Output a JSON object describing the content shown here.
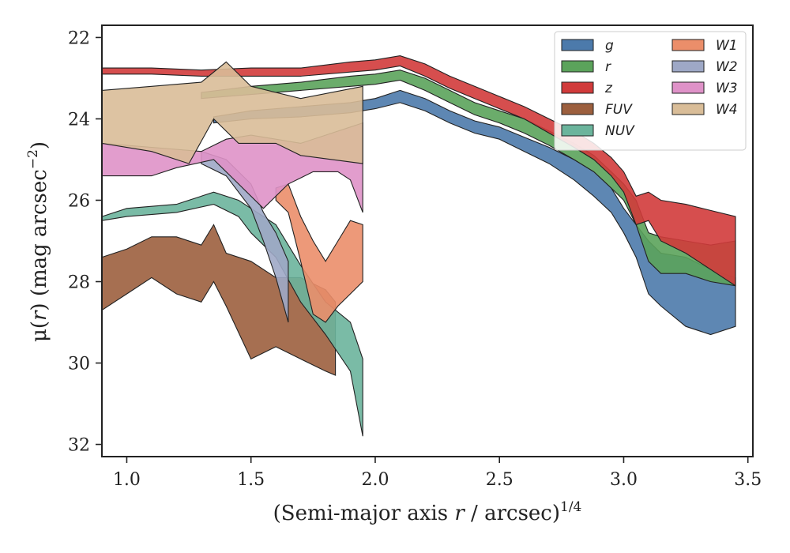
{
  "chart_data": {
    "type": "area",
    "xlabel": {
      "prefix": "(Semi-major axis ",
      "var": "r",
      "suffix": " / arcsec)",
      "sup": "1/4"
    },
    "ylabel": {
      "prefix": "μ(",
      "var": "r",
      "suffix": ") (mag arcsec",
      "sup": "−2",
      "close": ")"
    },
    "xlim": [
      0.9,
      3.52
    ],
    "ylim": [
      32.3,
      21.7
    ],
    "y_inverted": true,
    "xticks": [
      1.0,
      1.5,
      2.0,
      2.5,
      3.0,
      3.5
    ],
    "xtick_labels": [
      "1.0",
      "1.5",
      "2.0",
      "2.5",
      "3.0",
      "3.5"
    ],
    "yticks": [
      22,
      24,
      26,
      28,
      30,
      32
    ],
    "ytick_labels": [
      "22",
      "24",
      "26",
      "28",
      "30",
      "32"
    ],
    "legend": {
      "placement": "top-right",
      "columns": 2
    },
    "series": [
      {
        "name": "g",
        "color": "#4c7aab",
        "upper": [
          [
            1.35,
            23.95
          ],
          [
            1.5,
            23.8
          ],
          [
            1.7,
            23.7
          ],
          [
            1.9,
            23.6
          ],
          [
            2.0,
            23.5
          ],
          [
            2.1,
            23.3
          ],
          [
            2.2,
            23.5
          ],
          [
            2.3,
            23.8
          ],
          [
            2.4,
            24.05
          ],
          [
            2.5,
            24.2
          ],
          [
            2.6,
            24.45
          ],
          [
            2.7,
            24.7
          ],
          [
            2.8,
            25.0
          ],
          [
            2.88,
            25.3
          ],
          [
            2.95,
            25.7
          ],
          [
            3.0,
            26.2
          ],
          [
            3.05,
            26.6
          ],
          [
            3.1,
            27.0
          ],
          [
            3.15,
            27.3
          ],
          [
            3.25,
            27.4
          ],
          [
            3.35,
            27.7
          ],
          [
            3.45,
            27.9
          ]
        ],
        "lower": [
          [
            1.35,
            24.1
          ],
          [
            1.5,
            24.0
          ],
          [
            1.7,
            23.95
          ],
          [
            1.9,
            23.85
          ],
          [
            2.0,
            23.75
          ],
          [
            2.1,
            23.6
          ],
          [
            2.2,
            23.8
          ],
          [
            2.3,
            24.1
          ],
          [
            2.4,
            24.35
          ],
          [
            2.5,
            24.5
          ],
          [
            2.6,
            24.8
          ],
          [
            2.7,
            25.1
          ],
          [
            2.8,
            25.5
          ],
          [
            2.88,
            25.9
          ],
          [
            2.95,
            26.3
          ],
          [
            3.0,
            26.8
          ],
          [
            3.05,
            27.4
          ],
          [
            3.1,
            28.3
          ],
          [
            3.15,
            28.6
          ],
          [
            3.25,
            29.1
          ],
          [
            3.35,
            29.3
          ],
          [
            3.45,
            29.1
          ]
        ]
      },
      {
        "name": "r",
        "color": "#5ba35b",
        "upper": [
          [
            1.3,
            23.35
          ],
          [
            1.5,
            23.2
          ],
          [
            1.7,
            23.1
          ],
          [
            1.9,
            22.95
          ],
          [
            2.0,
            22.9
          ],
          [
            2.1,
            22.8
          ],
          [
            2.2,
            23.0
          ],
          [
            2.3,
            23.3
          ],
          [
            2.4,
            23.6
          ],
          [
            2.5,
            23.8
          ],
          [
            2.6,
            24.0
          ],
          [
            2.7,
            24.3
          ],
          [
            2.8,
            24.6
          ],
          [
            2.88,
            24.9
          ],
          [
            2.95,
            25.3
          ],
          [
            3.0,
            25.6
          ],
          [
            3.05,
            26.0
          ],
          [
            3.1,
            26.8
          ],
          [
            3.15,
            26.9
          ],
          [
            3.25,
            27.0
          ],
          [
            3.35,
            27.1
          ],
          [
            3.45,
            27.0
          ]
        ],
        "lower": [
          [
            1.3,
            23.5
          ],
          [
            1.5,
            23.4
          ],
          [
            1.7,
            23.3
          ],
          [
            1.9,
            23.2
          ],
          [
            2.0,
            23.15
          ],
          [
            2.1,
            23.05
          ],
          [
            2.2,
            23.3
          ],
          [
            2.3,
            23.6
          ],
          [
            2.4,
            23.9
          ],
          [
            2.5,
            24.1
          ],
          [
            2.6,
            24.35
          ],
          [
            2.7,
            24.65
          ],
          [
            2.8,
            25.0
          ],
          [
            2.88,
            25.3
          ],
          [
            2.95,
            25.7
          ],
          [
            3.0,
            26.0
          ],
          [
            3.05,
            26.6
          ],
          [
            3.1,
            27.5
          ],
          [
            3.15,
            27.8
          ],
          [
            3.25,
            27.8
          ],
          [
            3.35,
            28.0
          ],
          [
            3.45,
            28.1
          ]
        ]
      },
      {
        "name": "z",
        "color": "#d13b3b",
        "upper": [
          [
            0.9,
            22.75
          ],
          [
            1.1,
            22.75
          ],
          [
            1.3,
            22.8
          ],
          [
            1.5,
            22.75
          ],
          [
            1.7,
            22.75
          ],
          [
            1.9,
            22.6
          ],
          [
            2.0,
            22.55
          ],
          [
            2.1,
            22.45
          ],
          [
            2.2,
            22.65
          ],
          [
            2.3,
            22.95
          ],
          [
            2.4,
            23.2
          ],
          [
            2.5,
            23.45
          ],
          [
            2.6,
            23.7
          ],
          [
            2.7,
            24.0
          ],
          [
            2.8,
            24.3
          ],
          [
            2.88,
            24.6
          ],
          [
            2.95,
            24.95
          ],
          [
            3.0,
            25.3
          ],
          [
            3.05,
            25.9
          ],
          [
            3.1,
            25.8
          ],
          [
            3.15,
            26.0
          ],
          [
            3.25,
            26.1
          ],
          [
            3.35,
            26.25
          ],
          [
            3.45,
            26.4
          ]
        ],
        "lower": [
          [
            0.9,
            22.9
          ],
          [
            1.1,
            22.9
          ],
          [
            1.3,
            22.95
          ],
          [
            1.5,
            22.95
          ],
          [
            1.7,
            22.95
          ],
          [
            1.9,
            22.85
          ],
          [
            2.0,
            22.8
          ],
          [
            2.1,
            22.7
          ],
          [
            2.2,
            22.95
          ],
          [
            2.3,
            23.25
          ],
          [
            2.4,
            23.5
          ],
          [
            2.5,
            23.75
          ],
          [
            2.6,
            24.0
          ],
          [
            2.7,
            24.35
          ],
          [
            2.8,
            24.7
          ],
          [
            2.88,
            25.0
          ],
          [
            2.95,
            25.4
          ],
          [
            3.0,
            25.8
          ],
          [
            3.05,
            26.6
          ],
          [
            3.1,
            26.5
          ],
          [
            3.15,
            27.0
          ],
          [
            3.25,
            27.3
          ],
          [
            3.35,
            27.7
          ],
          [
            3.45,
            28.1
          ]
        ]
      },
      {
        "name": "FUV",
        "color": "#9c5f3e",
        "upper": [
          [
            0.9,
            27.4
          ],
          [
            1.0,
            27.2
          ],
          [
            1.1,
            26.9
          ],
          [
            1.2,
            26.9
          ],
          [
            1.3,
            27.1
          ],
          [
            1.35,
            26.6
          ],
          [
            1.4,
            27.3
          ],
          [
            1.5,
            27.5
          ],
          [
            1.6,
            27.9
          ],
          [
            1.7,
            27.9
          ],
          [
            1.8,
            28.2
          ],
          [
            1.84,
            28.5
          ]
        ],
        "lower": [
          [
            0.9,
            28.7
          ],
          [
            1.0,
            28.3
          ],
          [
            1.1,
            27.9
          ],
          [
            1.2,
            28.3
          ],
          [
            1.3,
            28.5
          ],
          [
            1.35,
            28.0
          ],
          [
            1.4,
            28.6
          ],
          [
            1.5,
            29.9
          ],
          [
            1.6,
            29.6
          ],
          [
            1.7,
            29.9
          ],
          [
            1.8,
            30.2
          ],
          [
            1.84,
            30.3
          ]
        ]
      },
      {
        "name": "NUV",
        "color": "#6bb49c",
        "upper": [
          [
            0.9,
            26.4
          ],
          [
            1.0,
            26.2
          ],
          [
            1.2,
            26.1
          ],
          [
            1.35,
            25.8
          ],
          [
            1.45,
            26.0
          ],
          [
            1.5,
            26.2
          ],
          [
            1.6,
            26.6
          ],
          [
            1.7,
            27.6
          ],
          [
            1.8,
            28.5
          ],
          [
            1.9,
            29.0
          ],
          [
            1.95,
            29.9
          ]
        ],
        "lower": [
          [
            0.9,
            26.5
          ],
          [
            1.0,
            26.4
          ],
          [
            1.2,
            26.3
          ],
          [
            1.35,
            26.1
          ],
          [
            1.45,
            26.4
          ],
          [
            1.5,
            26.8
          ],
          [
            1.6,
            27.4
          ],
          [
            1.7,
            28.5
          ],
          [
            1.8,
            29.3
          ],
          [
            1.9,
            30.2
          ],
          [
            1.95,
            31.8
          ]
        ]
      },
      {
        "name": "W1",
        "color": "#eb8e6a",
        "upper": [
          [
            1.6,
            25.7
          ],
          [
            1.65,
            25.6
          ],
          [
            1.7,
            26.4
          ],
          [
            1.75,
            27.0
          ],
          [
            1.8,
            27.5
          ],
          [
            1.85,
            27.0
          ],
          [
            1.9,
            26.5
          ],
          [
            1.95,
            26.6
          ]
        ],
        "lower": [
          [
            1.6,
            26.0
          ],
          [
            1.65,
            26.3
          ],
          [
            1.7,
            27.5
          ],
          [
            1.75,
            28.8
          ],
          [
            1.8,
            29.0
          ],
          [
            1.85,
            28.6
          ],
          [
            1.9,
            28.3
          ],
          [
            1.95,
            28.0
          ]
        ]
      },
      {
        "name": "W2",
        "color": "#9ea8c6",
        "upper": [
          [
            1.3,
            24.8
          ],
          [
            1.4,
            25.0
          ],
          [
            1.5,
            25.6
          ],
          [
            1.55,
            26.3
          ],
          [
            1.6,
            26.8
          ],
          [
            1.65,
            27.5
          ]
        ],
        "lower": [
          [
            1.3,
            25.1
          ],
          [
            1.4,
            25.4
          ],
          [
            1.5,
            26.2
          ],
          [
            1.55,
            27.0
          ],
          [
            1.6,
            27.9
          ],
          [
            1.65,
            29.0
          ]
        ]
      },
      {
        "name": "W3",
        "color": "#df92c8",
        "upper": [
          [
            0.9,
            24.6
          ],
          [
            1.1,
            24.7
          ],
          [
            1.3,
            24.8
          ],
          [
            1.4,
            24.5
          ],
          [
            1.5,
            24.4
          ],
          [
            1.6,
            24.5
          ],
          [
            1.7,
            24.6
          ],
          [
            1.8,
            24.4
          ],
          [
            1.9,
            24.2
          ],
          [
            1.95,
            24.1
          ]
        ],
        "lower": [
          [
            0.9,
            25.4
          ],
          [
            1.1,
            25.4
          ],
          [
            1.2,
            25.2
          ],
          [
            1.35,
            25.0
          ],
          [
            1.45,
            25.6
          ],
          [
            1.55,
            26.2
          ],
          [
            1.65,
            25.6
          ],
          [
            1.75,
            25.3
          ],
          [
            1.85,
            25.3
          ],
          [
            1.9,
            25.5
          ],
          [
            1.95,
            26.3
          ]
        ]
      },
      {
        "name": "W4",
        "color": "#d9bd98",
        "upper": [
          [
            0.9,
            23.3
          ],
          [
            1.1,
            23.2
          ],
          [
            1.3,
            23.1
          ],
          [
            1.4,
            22.6
          ],
          [
            1.5,
            23.2
          ],
          [
            1.7,
            23.5
          ],
          [
            1.95,
            23.2
          ]
        ],
        "lower": [
          [
            0.9,
            24.6
          ],
          [
            1.1,
            24.8
          ],
          [
            1.25,
            25.1
          ],
          [
            1.35,
            24.0
          ],
          [
            1.45,
            24.6
          ],
          [
            1.6,
            24.6
          ],
          [
            1.7,
            24.9
          ],
          [
            1.95,
            25.1
          ]
        ]
      }
    ]
  }
}
